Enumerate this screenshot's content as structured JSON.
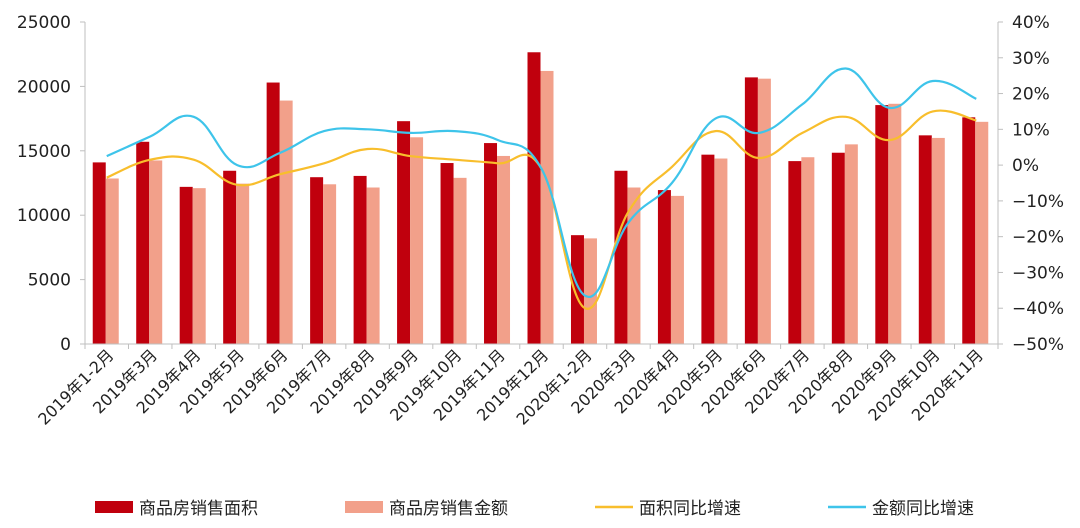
{
  "chart_data": {
    "type": "bar",
    "title": "",
    "categories": [
      "2019年1-2月",
      "2019年3月",
      "2019年4月",
      "2019年5月",
      "2019年6月",
      "2019年7月",
      "2019年8月",
      "2019年9月",
      "2019年10月",
      "2019年11月",
      "2019年12月",
      "2020年1-2月",
      "2020年3月",
      "2020年4月",
      "2020年5月",
      "2020年6月",
      "2020年7月",
      "2020年8月",
      "2020年9月",
      "2020年10月",
      "2020年11月"
    ],
    "y_left": {
      "ylim": [
        0,
        25000
      ],
      "ticks": [
        0,
        5000,
        10000,
        15000,
        20000,
        25000
      ],
      "tick_labels": [
        "0",
        "5000",
        "10000",
        "15000",
        "20000",
        "25000"
      ]
    },
    "y_right": {
      "ylim": [
        -50,
        40
      ],
      "ticks": [
        -50,
        -40,
        -30,
        -20,
        -10,
        0,
        10,
        20,
        30,
        40
      ],
      "tick_labels": [
        "−50%",
        "−40%",
        "−30%",
        "−20%",
        "−10%",
        "0%",
        "10%",
        "20%",
        "30%",
        "40%"
      ]
    },
    "series": [
      {
        "name": "商品房销售面积",
        "type": "bar",
        "axis": "left",
        "color": "#c0000d",
        "values": [
          14100,
          15700,
          12200,
          13450,
          20300,
          12950,
          13050,
          17300,
          14050,
          15600,
          22650,
          8450,
          13450,
          11950,
          14700,
          20700,
          14200,
          14850,
          18550,
          16200,
          17600
        ]
      },
      {
        "name": "商品房销售金额",
        "type": "bar",
        "axis": "left",
        "color": "#f2a08a",
        "values": [
          12850,
          14250,
          12100,
          12450,
          18900,
          12400,
          12150,
          16050,
          12900,
          14600,
          21200,
          8200,
          12150,
          11500,
          14400,
          20600,
          14500,
          15500,
          18650,
          16000,
          17250
        ]
      },
      {
        "name": "面积同比增速",
        "type": "line",
        "axis": "right",
        "color": "#f8be2c",
        "values": [
          -3.5,
          1.5,
          1.5,
          -5.5,
          -2.5,
          0.5,
          4.5,
          2.5,
          1.5,
          0.5,
          -1.0,
          -40.0,
          -13.0,
          -0.5,
          9.5,
          2.0,
          9.0,
          13.5,
          7.0,
          15.0,
          12.5
        ]
      },
      {
        "name": "金额同比增速",
        "type": "line",
        "axis": "right",
        "color": "#3ec4ea",
        "values": [
          2.5,
          8.0,
          13.5,
          0.0,
          3.5,
          9.5,
          10.0,
          9.0,
          9.5,
          7.0,
          -1.0,
          -36.5,
          -16.0,
          -5.0,
          13.0,
          9.0,
          17.0,
          27.0,
          16.0,
          23.5,
          18.5
        ]
      }
    ],
    "legend": {
      "position": "bottom"
    },
    "grid": false
  }
}
